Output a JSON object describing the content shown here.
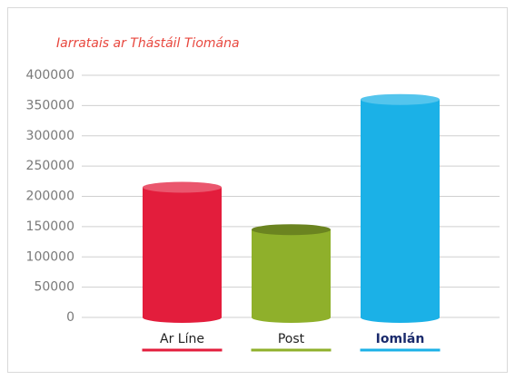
{
  "chart_data": {
    "type": "bar",
    "title": "Iarratais ar Thástáil Tiomána",
    "categories": [
      "Ar Líne",
      "Post",
      "Iomlán"
    ],
    "values": [
      215000,
      145000,
      360000
    ],
    "colors": [
      "#e31d3c",
      "#8fb02b",
      "#1bb1e7"
    ],
    "ylim": [
      0,
      400000
    ],
    "yticks": [
      0,
      50000,
      100000,
      150000,
      200000,
      250000,
      300000,
      350000,
      400000
    ],
    "grid": true
  }
}
